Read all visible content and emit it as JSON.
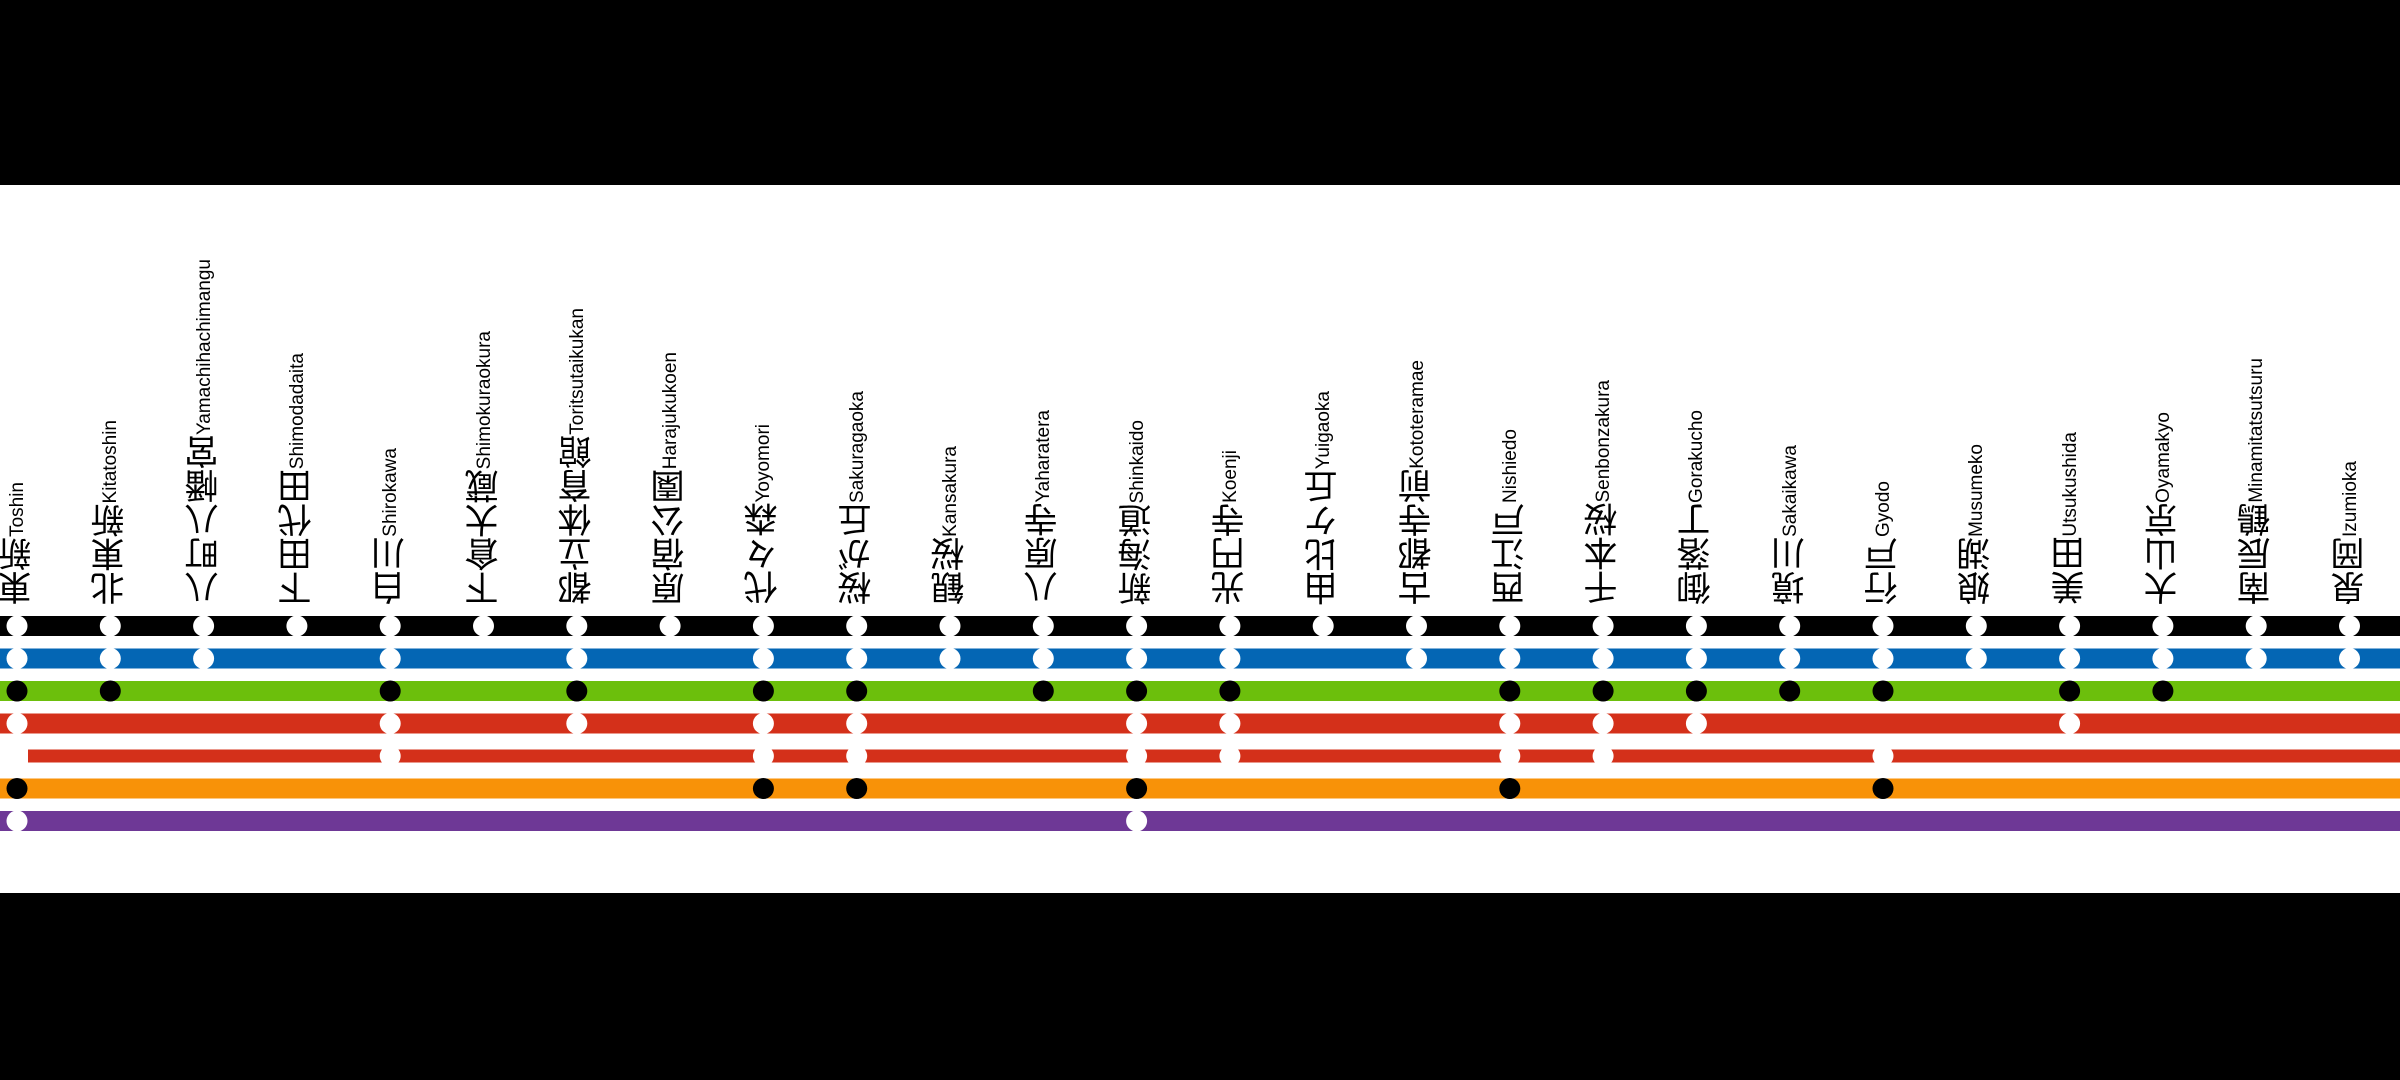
{
  "stations": [
    {
      "kanji": "東新",
      "romaji": "Toshin"
    },
    {
      "kanji": "北東新",
      "romaji": "Kitatoshin"
    },
    {
      "kanji": "八町八幡宮",
      "romaji": "Yamachihachimangu"
    },
    {
      "kanji": "下田代田",
      "romaji": "Shimodadaita"
    },
    {
      "kanji": "白川",
      "romaji": "Shirokawa"
    },
    {
      "kanji": "下倉大蔵",
      "romaji": "Shimokuraokura"
    },
    {
      "kanji": "都立体育館",
      "romaji": "Toritsutaikukan"
    },
    {
      "kanji": "原宿公園",
      "romaji": "Harajukukoen"
    },
    {
      "kanji": "代々森",
      "romaji": "Yoyomori"
    },
    {
      "kanji": "桜が丘",
      "romaji": "Sakuragaoka"
    },
    {
      "kanji": "観桜",
      "romaji": "Kansakura"
    },
    {
      "kanji": "八原寺",
      "romaji": "Yaharatera"
    },
    {
      "kanji": "新海道",
      "romaji": "Shinkaido"
    },
    {
      "kanji": "光円寺",
      "romaji": "Koenji"
    },
    {
      "kanji": "由比ケ丘",
      "romaji": "Yuigaoka"
    },
    {
      "kanji": "古都寺前",
      "romaji": "Kototeramae"
    },
    {
      "kanji": "西江戸",
      "romaji": "Nishiedo"
    },
    {
      "kanji": "千本桜",
      "romaji": "Senbonzakura"
    },
    {
      "kanji": "御落丁",
      "romaji": "Gorakucho"
    },
    {
      "kanji": "境川",
      "romaji": "Sakaikawa"
    },
    {
      "kanji": "行戸",
      "romaji": "Gyodo"
    },
    {
      "kanji": "娘湖",
      "romaji": "Musumeko"
    },
    {
      "kanji": "美田",
      "romaji": "Utsukushida"
    },
    {
      "kanji": "大山京",
      "romaji": "Oyamakyo"
    },
    {
      "kanji": "南辰鶴",
      "romaji": "Minamitatsutsuru"
    },
    {
      "kanji": "泉岡",
      "romaji": "Izumioka"
    }
  ],
  "lines": [
    {
      "color": "#000000",
      "dot_color": "#ffffff",
      "stops": [
        0,
        1,
        2,
        3,
        4,
        5,
        6,
        7,
        8,
        9,
        10,
        11,
        12,
        13,
        14,
        15,
        16,
        17,
        18,
        19,
        20,
        21,
        22,
        23,
        24,
        25
      ]
    },
    {
      "color": "#0466b4",
      "dot_color": "#ffffff",
      "stops": [
        0,
        1,
        2,
        4,
        6,
        8,
        9,
        10,
        11,
        12,
        13,
        15,
        16,
        17,
        18,
        19,
        20,
        21,
        22,
        23,
        24,
        25
      ]
    },
    {
      "color": "#6cbf0c",
      "dot_color": "#000000",
      "stops": [
        0,
        1,
        4,
        6,
        8,
        9,
        11,
        12,
        13,
        16,
        17,
        18,
        19,
        20,
        22,
        23
      ]
    },
    {
      "color": "#d4301a",
      "dot_color": "#ffffff",
      "stops": [
        0,
        4,
        6,
        8,
        9,
        12,
        13,
        16,
        17,
        18,
        22
      ]
    },
    {
      "color": "#d4301a",
      "dot_color": "#ffffff",
      "stops": [
        4,
        8,
        9,
        12,
        13,
        16,
        17,
        20
      ],
      "thin": true,
      "start_offset": true
    },
    {
      "color": "#f89208",
      "dot_color": "#000000",
      "stops": [
        0,
        8,
        9,
        12,
        16,
        20
      ]
    },
    {
      "color": "#6e3896",
      "dot_color": "#ffffff",
      "stops": [
        0,
        12
      ]
    }
  ]
}
